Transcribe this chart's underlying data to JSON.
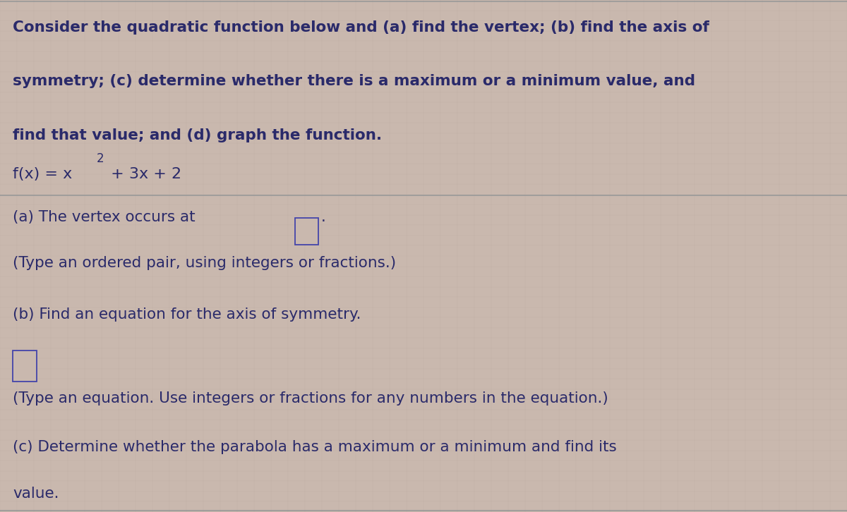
{
  "bg_color": "#c9b8ae",
  "line_color": "#999999",
  "text_color": "#2a2a6a",
  "title_text_lines": [
    "Consider the quadratic function below and (a) find the vertex; (b) find the axis of",
    "symmetry; (c) determine whether there is a maximum or a minimum value, and",
    "find that value; and (d) graph the function."
  ],
  "part_a_line1": "(a) The vertex occurs at",
  "part_a_line2": "(Type an ordered pair, using integers or fractions.)",
  "part_b_line1": "(b) Find an equation for the axis of symmetry.",
  "part_b_line2": "(Type an equation. Use integers or fractions for any numbers in the equation.)",
  "part_c_line1": "(c) Determine whether the parabola has a maximum or a minimum and find its",
  "part_c_line2": "value.",
  "title_fontsize": 15.5,
  "function_fontsize": 16,
  "body_fontsize": 15.5,
  "figsize": [
    12.0,
    7.26
  ],
  "dpi": 100
}
